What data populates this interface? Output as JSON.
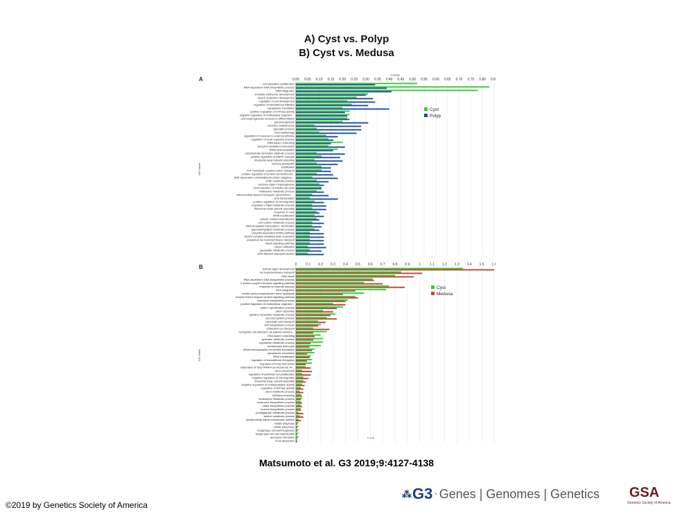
{
  "caption": {
    "line1": "A) Cyst vs. Polyp",
    "line2": "B) Cyst vs. Medusa"
  },
  "citation": "Matsumoto et al. G3 2019;9:4127-4138",
  "copyright": "©2019 by Genetics Society of America",
  "logo": {
    "mark": "⁂",
    "g3": "G3",
    "dot": "·",
    "text": "Genes | Genomes | Genetics",
    "gsa": "GSA",
    "gsa_sub": "Genetics Society of America"
  },
  "colors": {
    "cyst": "#33cc33",
    "polyp": "#1f4e96",
    "medusa": "#b34a3a",
    "grid": "#dce9f2",
    "axis": "#444444"
  },
  "chart_data": [
    {
      "type": "bar",
      "orientation": "horizontal",
      "panel_label": "A",
      "xlabel": "% Seqs",
      "ylabel": "GO Name",
      "xlim": [
        0,
        0.85
      ],
      "xticks": [
        "0.00",
        "0.05",
        "0.10",
        "0.15",
        "0.20",
        "0.25",
        "0.30",
        "0.35",
        "0.40",
        "0.45",
        "0.50",
        "0.55",
        "0.60",
        "0.65",
        "0.70",
        "0.75",
        "0.80",
        "0.85"
      ],
      "legend_position": "right",
      "categories": [
        "cell population proliferation",
        "RNA-dependent DNA biosynthetic process",
        "DNA integration",
        "chordate embryonic development",
        "neuron projection development",
        "regulation of cell development",
        "regulation of translational initiation",
        "cytoplasmic translation",
        "positive regulation of GTPase activity",
        "negative regulation of multicellular organism...",
        "cell morphogenesis involved in differentiation",
        "gluconeogenesis",
        "telomere maintenance",
        "glycolytic process",
        "macroautophagy",
        "regulation of response to external stimulus",
        "regulation of multi-organism process",
        "DNA duplex unwinding",
        "receptor-mediated endocytosis",
        "tRNA aminoacylation",
        "carbohydrate derivative catabolic process",
        "positive regulation of MAPK cascade",
        "ribosomal large subunit assembly",
        "sensory perception",
        "ossification",
        "ATP hydrolysis coupled proton transport",
        "positive regulation of protein serine/threoni...",
        "SRP-dependent cotranslational protein targeting ...",
        "chitin metabolic process",
        "sensory organ morphogenesis",
        "G1/S transition of mitotic cell cycle",
        "methionine metabolic process",
        "mitochondrial electron transport, cytochrome c ...",
        "viral transcription",
        "positive regulation of cell migration",
        "regulation of lipid metabolic process",
        "ribosomal small subunit assembly",
        "response to virus",
        "tRNA modification",
        "cellular oxidant detoxification",
        "one-carbon metabolic process",
        "DNA-templated transcription, termination",
        "glycosphingolipid metabolic process",
        "ubiquitin-dependent ERAD pathway",
        "Arp2/3 complex-mediated actin nucleation",
        "potassium ion transmembrane transport",
        "Notch signaling pathway",
        "carbon utilization",
        "glyoxylate metabolic process",
        "actin filament depolymerization"
      ],
      "series": [
        {
          "name": "Cyst",
          "values": [
            0.52,
            0.83,
            0.78,
            0.31,
            0.26,
            0.22,
            0.24,
            0.2,
            0.23,
            0.23,
            0.22,
            0.2,
            0.08,
            0.09,
            0.1,
            0.13,
            0.14,
            0.2,
            0.14,
            0.18,
            0.09,
            0.11,
            0.08,
            0.09,
            0.11,
            0.11,
            0.09,
            0.07,
            0.09,
            0.1,
            0.11,
            0.09,
            0.07,
            0.06,
            0.08,
            0.07,
            0.07,
            0.09,
            0.08,
            0.09,
            0.07,
            0.07,
            0.08,
            0.06,
            0.06,
            0.06,
            0.06,
            0.05,
            0.06,
            0.05
          ]
        },
        {
          "name": "Polyp",
          "values": [
            0.34,
            0.39,
            0.41,
            0.3,
            0.33,
            0.34,
            0.31,
            0.4,
            0.21,
            0.22,
            0.23,
            0.31,
            0.28,
            0.28,
            0.26,
            0.18,
            0.16,
            0.15,
            0.21,
            0.16,
            0.21,
            0.19,
            0.2,
            0.18,
            0.15,
            0.15,
            0.16,
            0.18,
            0.14,
            0.12,
            0.11,
            0.12,
            0.14,
            0.18,
            0.12,
            0.13,
            0.13,
            0.1,
            0.12,
            0.1,
            0.12,
            0.11,
            0.1,
            0.12,
            0.12,
            0.12,
            0.12,
            0.13,
            0.11,
            0.12
          ]
        }
      ]
    },
    {
      "type": "bar",
      "orientation": "horizontal",
      "panel_label": "B",
      "xlabel": "% Seqs",
      "ylabel": "GO Name",
      "xlim": [
        0,
        1.6
      ],
      "xticks": [
        "0",
        "0.1",
        "0.2",
        "0.3",
        "0.4",
        "0.5",
        "0.6",
        "0.7",
        "0.8",
        "0.9",
        "1",
        "1.1",
        "1.2",
        "1.3",
        "1.4",
        "1.5",
        "1.6"
      ],
      "legend_position": "right",
      "categories": [
        "animal organ development",
        "ion transmembrane transport",
        "DNA repair",
        "RNA-dependent DNA biosynthetic process",
        "G protein-coupled receptor signaling pathway",
        "response to external stimulus",
        "DNA integration",
        "nucleic acid phosphodiester bond hydrolysis",
        "enzyme linked receptor protein signaling pathway",
        "coenzyme biosynthetic process",
        "positive regulation of multicellular organism...",
        "pattern specification process",
        "cilium assembly",
        "pyridine nucleotide metabolic process",
        "nervous system process",
        "carboxylic acid transport",
        "ATP biosynthetic process",
        "potassium ion transport",
        "homophilic cell adhesion via plasma membra...",
        "DNA duplex unwinding",
        "pyruvate metabolic process",
        "tryptophan metabolic process",
        "tricarboxylic acid cycle",
        "tRNA aminoacylation for protein translation",
        "cytoplasmic translation",
        "tRNA modification",
        "regulation of translational elongation",
        "regulation of body fluid levels",
        "maturation of SSU-rRNA from tricistronic rR...",
        "cilium movement",
        "regulation of epithelial cell proliferation",
        "negative regulation of cell migration",
        "ribosomal large subunit assembly",
        "negative regulation of endopeptidase activity",
        "regulation of ATPase activity",
        "sterol metabolic process",
        "snRNA processing",
        "leukotriene metabolic process",
        "isoleucine biosynthetic process",
        "valine biosynthetic process",
        "leucine biosynthetic process",
        "prostaglandin metabolic process",
        "taurine metabolic process",
        "phosphorelay signal transduction system",
        "mitotic anaphase",
        "mitotic interphase",
        "fungal-type cell wall biogenesis",
        "fungal-type cell wall organization",
        "ascospore formation",
        "renal absorption"
      ],
      "series": [
        {
          "name": "Cyst",
          "values": [
            1.35,
            0.85,
            0.8,
            0.62,
            0.55,
            0.75,
            0.73,
            0.55,
            0.48,
            0.42,
            0.3,
            0.38,
            0.22,
            0.32,
            0.25,
            0.18,
            0.2,
            0.14,
            0.25,
            0.2,
            0.22,
            0.22,
            0.2,
            0.15,
            0.15,
            0.12,
            0.13,
            0.13,
            0.08,
            0.05,
            0.05,
            0.06,
            0.06,
            0.05,
            0.04,
            0.03,
            0.04,
            0.05,
            0.04,
            0.04,
            0.04,
            0.02,
            0.03,
            0.02,
            0.02,
            0.02,
            0.02,
            0.02,
            0.02,
            0.01
          ]
        },
        {
          "name": "Medusa",
          "values": [
            1.6,
            1.02,
            0.95,
            0.63,
            0.7,
            0.88,
            0.48,
            0.38,
            0.5,
            0.4,
            0.4,
            0.33,
            0.3,
            0.28,
            0.33,
            0.24,
            0.18,
            0.27,
            0.14,
            0.15,
            0.14,
            0.12,
            0.11,
            0.13,
            0.09,
            0.11,
            0.09,
            0.08,
            0.12,
            0.13,
            0.12,
            0.1,
            0.08,
            0.07,
            0.06,
            0.06,
            0.05,
            0.04,
            0.05,
            0.05,
            0.04,
            0.06,
            0.06,
            0.04,
            0.01,
            0.01,
            0.01,
            0.01,
            0.01,
            0.01
          ]
        }
      ]
    }
  ]
}
